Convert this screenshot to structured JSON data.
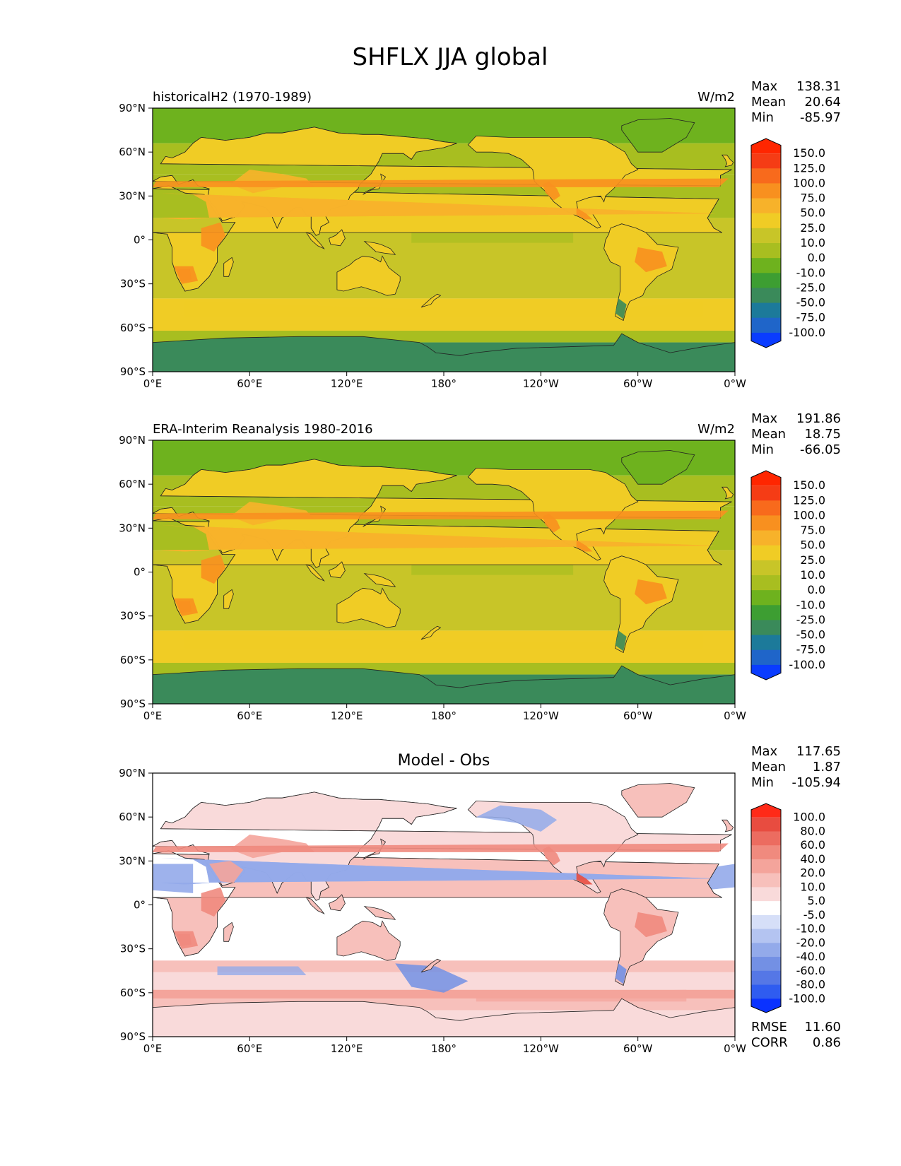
{
  "figure": {
    "title": "SHFLX JJA global"
  },
  "colors": {
    "main_scale": [
      "#0a3cff",
      "#1f65c9",
      "#1c7a9a",
      "#3a8a5a",
      "#3d9e32",
      "#6eb21e",
      "#a8be20",
      "#c8c528",
      "#f0cc25",
      "#f7b22a",
      "#f8901f",
      "#f86a1c",
      "#f53c15",
      "#ff2600"
    ],
    "diff_scale": [
      "#0a32ff",
      "#2f5cf0",
      "#5577e6",
      "#7390e4",
      "#93aaea",
      "#b4c4f1",
      "#d6dff8",
      "#ffffff",
      "#f9dada",
      "#f7c0bb",
      "#f4a49b",
      "#f08a7e",
      "#ec6c60",
      "#e84c40",
      "#ff2a18"
    ],
    "land_line": "#222222"
  },
  "chart_data": [
    {
      "type": "heatmap",
      "title": "historicalH2 (1970-1989)",
      "units": "W/m2",
      "stats": [
        {
          "label": "Max",
          "value": "138.31"
        },
        {
          "label": "Mean",
          "value": "20.64"
        },
        {
          "label": "Min",
          "value": "-85.97"
        }
      ],
      "x_ticks": [
        "0°E",
        "60°E",
        "120°E",
        "180°",
        "120°W",
        "60°W",
        "0°W"
      ],
      "y_ticks": [
        "90°N",
        "60°N",
        "30°N",
        "0°",
        "30°S",
        "60°S",
        "90°S"
      ],
      "xlim": [
        0,
        360
      ],
      "ylim": [
        -90,
        90
      ],
      "colorbar_labels": [
        "150.0",
        "125.0",
        "100.0",
        "75.0",
        "50.0",
        "25.0",
        "10.0",
        "0.0",
        "-10.0",
        "-25.0",
        "-50.0",
        "-75.0",
        "-100.0"
      ],
      "colorbar_levels": [
        -100,
        -75,
        -50,
        -25,
        -10,
        0,
        10,
        25,
        50,
        75,
        100,
        125,
        150
      ]
    },
    {
      "type": "heatmap",
      "title": "ERA-Interim Reanalysis 1980-2016",
      "units": "W/m2",
      "stats": [
        {
          "label": "Max",
          "value": "191.86"
        },
        {
          "label": "Mean",
          "value": "18.75"
        },
        {
          "label": "Min",
          "value": "-66.05"
        }
      ],
      "x_ticks": [
        "0°E",
        "60°E",
        "120°E",
        "180°",
        "120°W",
        "60°W",
        "0°W"
      ],
      "y_ticks": [
        "90°N",
        "60°N",
        "30°N",
        "0°",
        "30°S",
        "60°S",
        "90°S"
      ],
      "xlim": [
        0,
        360
      ],
      "ylim": [
        -90,
        90
      ],
      "colorbar_labels": [
        "150.0",
        "125.0",
        "100.0",
        "75.0",
        "50.0",
        "25.0",
        "10.0",
        "0.0",
        "-10.0",
        "-25.0",
        "-50.0",
        "-75.0",
        "-100.0"
      ],
      "colorbar_levels": [
        -100,
        -75,
        -50,
        -25,
        -10,
        0,
        10,
        25,
        50,
        75,
        100,
        125,
        150
      ]
    },
    {
      "type": "heatmap",
      "title": "Model - Obs",
      "units": "",
      "stats": [
        {
          "label": "Max",
          "value": "117.65"
        },
        {
          "label": "Mean",
          "value": "1.87"
        },
        {
          "label": "Min",
          "value": "-105.94"
        }
      ],
      "x_ticks": [
        "0°E",
        "60°E",
        "120°E",
        "180°",
        "120°W",
        "60°W",
        "0°W"
      ],
      "y_ticks": [
        "90°N",
        "60°N",
        "30°N",
        "0°",
        "30°S",
        "60°S",
        "90°S"
      ],
      "xlim": [
        0,
        360
      ],
      "ylim": [
        -90,
        90
      ],
      "colorbar_labels": [
        "100.0",
        "80.0",
        "60.0",
        "40.0",
        "20.0",
        "10.0",
        "5.0",
        "-5.0",
        "-10.0",
        "-20.0",
        "-40.0",
        "-60.0",
        "-80.0",
        "-100.0"
      ],
      "colorbar_levels": [
        -100,
        -80,
        -60,
        -40,
        -20,
        -10,
        -5,
        5,
        10,
        20,
        40,
        60,
        80,
        100
      ],
      "metrics": [
        {
          "label": "RMSE",
          "value": "11.60"
        },
        {
          "label": "CORR",
          "value": "0.86"
        }
      ]
    }
  ]
}
